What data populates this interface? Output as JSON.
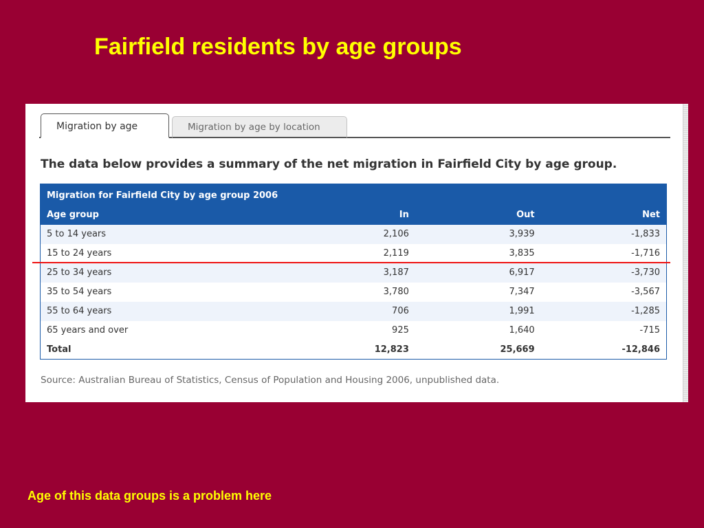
{
  "slide": {
    "title": "Fairfield residents by age groups",
    "footnote": "Age of this data groups is a problem here"
  },
  "tabs": [
    {
      "label": "Migration by age",
      "active": true
    },
    {
      "label": "Migration by age by location",
      "active": false
    }
  ],
  "intro": "The data below provides a summary of the net migration in Fairfield City by age group.",
  "table": {
    "caption": "Migration for Fairfield City by age group 2006",
    "columns": [
      "Age group",
      "In",
      "Out",
      "Net"
    ],
    "rows": [
      {
        "age": "5 to 14 years",
        "in": "2,106",
        "out": "3,939",
        "net": "-1,833"
      },
      {
        "age": "15 to 24 years",
        "in": "2,119",
        "out": "3,835",
        "net": "-1,716"
      },
      {
        "age": "25 to 34 years",
        "in": "3,187",
        "out": "6,917",
        "net": "-3,730"
      },
      {
        "age": "35 to 54 years",
        "in": "3,780",
        "out": "7,347",
        "net": "-3,567"
      },
      {
        "age": "55 to 64 years",
        "in": "706",
        "out": "1,991",
        "net": "-1,285"
      },
      {
        "age": "65 years and over",
        "in": "925",
        "out": "1,640",
        "net": "-715"
      }
    ],
    "total": {
      "age": "Total",
      "in": "12,823",
      "out": "25,669",
      "net": "-12,846"
    }
  },
  "source": "Source: Australian Bureau of Statistics, Census of Population and Housing 2006, unpublished data.",
  "colors": {
    "background": "#990033",
    "title": "#ffff00",
    "table_header": "#1a5aa8",
    "highlight_line": "#ee1111"
  }
}
